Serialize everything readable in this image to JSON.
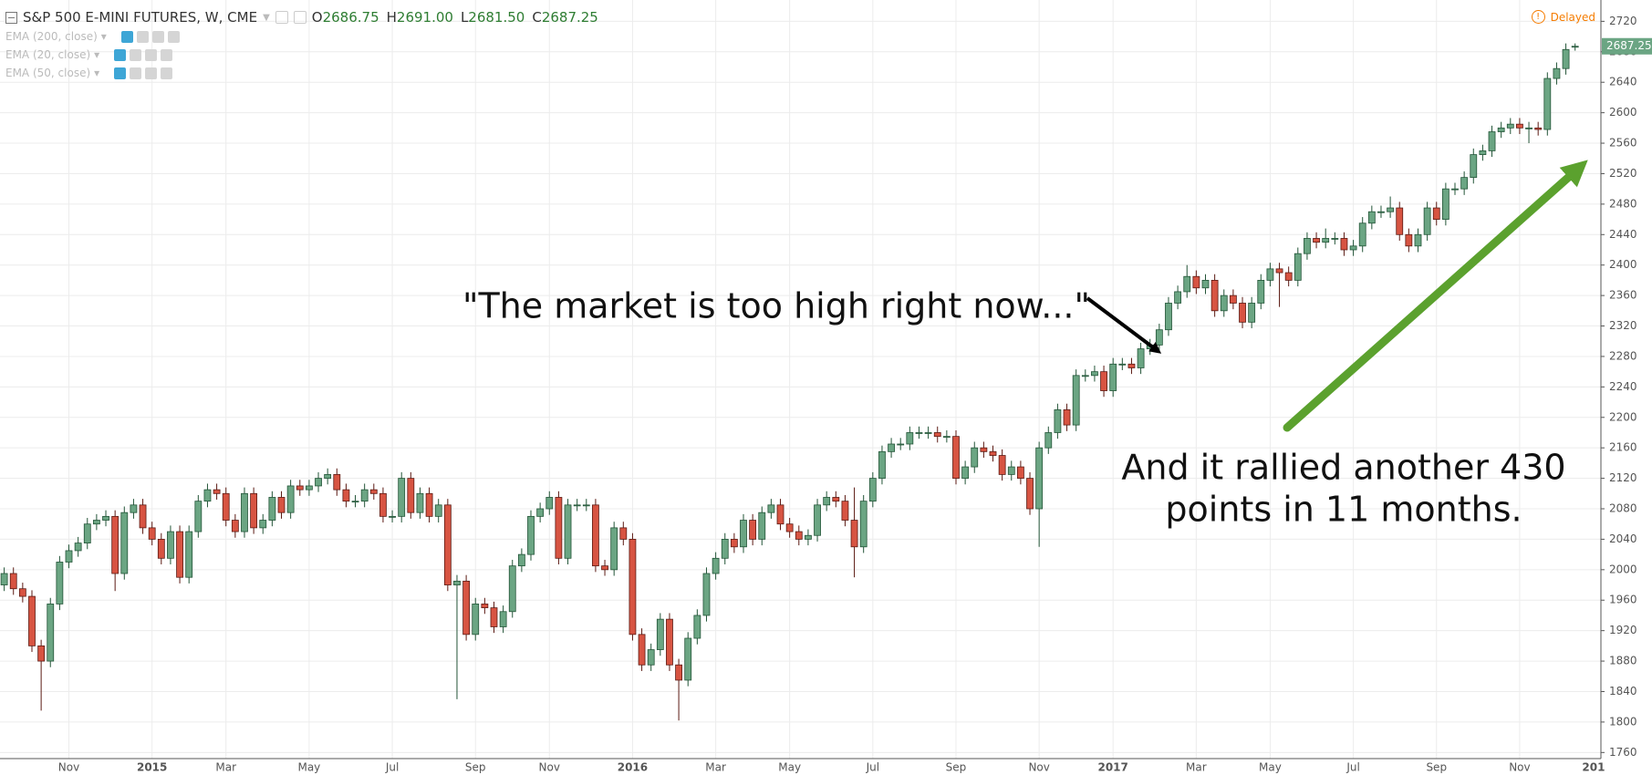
{
  "header": {
    "symbol": "S&P 500 E-MINI FUTURES, W, CME",
    "quote": [
      {
        "letter": "O",
        "value": 2686.75,
        "label": "2686.75"
      },
      {
        "letter": "H",
        "value": 2691,
        "label": "2691.00"
      },
      {
        "letter": "L",
        "value": 2681.5,
        "label": "2681.50"
      },
      {
        "letter": "C",
        "value": 2687.25,
        "label": "2687.25"
      }
    ],
    "indicators": [
      "EMA (200, close)",
      "EMA (20, close)",
      "EMA (50, close)"
    ],
    "status": "Delayed"
  },
  "chart_data": {
    "type": "candlestick",
    "up_color": "#6ba583",
    "down_color": "#d75442",
    "grid": true,
    "annotations": [
      {
        "text": [
          "\"The market is too high right now...\""
        ]
      },
      {
        "text": [
          "And it rallied another 430",
          "points in 11 months."
        ]
      }
    ],
    "ylim": [
      1752,
      2748
    ],
    "yticks": [
      1760,
      1800,
      1840,
      1880,
      1920,
      1960,
      2000,
      2040,
      2080,
      2120,
      2160,
      2200,
      2240,
      2280,
      2320,
      2360,
      2400,
      2440,
      2480,
      2520,
      2560,
      2600,
      2640,
      2680,
      2720
    ],
    "x_axis_end_label": "201",
    "categories": [
      null,
      null,
      null,
      null,
      null,
      null,
      null,
      "Nov",
      null,
      null,
      null,
      null,
      null,
      null,
      null,
      null,
      "2015",
      null,
      null,
      null,
      null,
      null,
      null,
      null,
      "Mar",
      null,
      null,
      null,
      null,
      null,
      null,
      null,
      null,
      "May",
      null,
      null,
      null,
      null,
      null,
      null,
      null,
      null,
      "Jul",
      null,
      null,
      null,
      null,
      null,
      null,
      null,
      null,
      "Sep",
      null,
      null,
      null,
      null,
      null,
      null,
      null,
      "Nov",
      null,
      null,
      null,
      null,
      null,
      null,
      null,
      null,
      "2016",
      null,
      null,
      null,
      null,
      null,
      null,
      null,
      null,
      "Mar",
      null,
      null,
      null,
      null,
      null,
      null,
      null,
      "May",
      null,
      null,
      null,
      null,
      null,
      null,
      null,
      null,
      "Jul",
      null,
      null,
      null,
      null,
      null,
      null,
      null,
      null,
      "Sep",
      null,
      null,
      null,
      null,
      null,
      null,
      null,
      null,
      "Nov",
      null,
      null,
      null,
      null,
      null,
      null,
      null,
      "2017",
      null,
      null,
      null,
      null,
      null,
      null,
      null,
      null,
      "Mar",
      null,
      null,
      null,
      null,
      null,
      null,
      null,
      "May",
      null,
      null,
      null,
      null,
      null,
      null,
      null,
      null,
      "Jul",
      null,
      null,
      null,
      null,
      null,
      null,
      null,
      null,
      "Sep",
      null,
      null,
      null,
      null,
      null,
      null,
      null,
      null,
      "Nov",
      null,
      null,
      null,
      null,
      null,
      null
    ],
    "candles": [
      [
        1980,
        2003,
        1972,
        1995
      ],
      [
        1995,
        2003,
        1967,
        1975
      ],
      [
        1975,
        1983,
        1957,
        1965
      ],
      [
        1965,
        1973,
        1892,
        1900
      ],
      [
        1900,
        1908,
        1815,
        1880
      ],
      [
        1880,
        1963,
        1872,
        1955
      ],
      [
        1955,
        2018,
        1947,
        2010
      ],
      [
        2010,
        2033,
        2002,
        2025
      ],
      [
        2025,
        2043,
        2017,
        2035
      ],
      [
        2035,
        2068,
        2027,
        2060
      ],
      [
        2060,
        2073,
        2052,
        2065
      ],
      [
        2065,
        2078,
        2057,
        2070
      ],
      [
        2070,
        2078,
        1972,
        1995
      ],
      [
        1995,
        2083,
        1987,
        2075
      ],
      [
        2075,
        2093,
        2067,
        2085
      ],
      [
        2085,
        2093,
        2047,
        2055
      ],
      [
        2055,
        2063,
        2032,
        2040
      ],
      [
        2040,
        2048,
        2007,
        2015
      ],
      [
        2015,
        2058,
        2007,
        2050
      ],
      [
        2050,
        2058,
        1982,
        1990
      ],
      [
        1990,
        2058,
        1982,
        2050
      ],
      [
        2050,
        2098,
        2042,
        2090
      ],
      [
        2090,
        2113,
        2082,
        2105
      ],
      [
        2105,
        2113,
        2092,
        2100
      ],
      [
        2100,
        2108,
        2057,
        2065
      ],
      [
        2065,
        2073,
        2042,
        2050
      ],
      [
        2050,
        2108,
        2042,
        2100
      ],
      [
        2100,
        2108,
        2047,
        2055
      ],
      [
        2055,
        2073,
        2047,
        2065
      ],
      [
        2065,
        2103,
        2057,
        2095
      ],
      [
        2095,
        2103,
        2067,
        2075
      ],
      [
        2075,
        2118,
        2067,
        2110
      ],
      [
        2110,
        2118,
        2097,
        2105
      ],
      [
        2105,
        2118,
        2097,
        2110
      ],
      [
        2110,
        2128,
        2102,
        2120
      ],
      [
        2120,
        2133,
        2112,
        2125
      ],
      [
        2125,
        2133,
        2097,
        2105
      ],
      [
        2105,
        2113,
        2082,
        2090
      ],
      [
        2090,
        2098,
        2082,
        2090
      ],
      [
        2090,
        2113,
        2082,
        2105
      ],
      [
        2105,
        2113,
        2092,
        2100
      ],
      [
        2100,
        2108,
        2062,
        2070
      ],
      [
        2070,
        2078,
        2062,
        2070
      ],
      [
        2070,
        2128,
        2062,
        2120
      ],
      [
        2120,
        2128,
        2067,
        2075
      ],
      [
        2075,
        2108,
        2067,
        2100
      ],
      [
        2100,
        2108,
        2062,
        2070
      ],
      [
        2070,
        2093,
        2062,
        2085
      ],
      [
        2085,
        2093,
        1972,
        1980
      ],
      [
        1980,
        1993,
        1830,
        1985
      ],
      [
        1985,
        1993,
        1907,
        1915
      ],
      [
        1915,
        1963,
        1907,
        1955
      ],
      [
        1955,
        1963,
        1942,
        1950
      ],
      [
        1950,
        1958,
        1917,
        1925
      ],
      [
        1925,
        1953,
        1917,
        1945
      ],
      [
        1945,
        2013,
        1937,
        2005
      ],
      [
        2005,
        2028,
        1997,
        2020
      ],
      [
        2020,
        2078,
        2012,
        2070
      ],
      [
        2070,
        2088,
        2062,
        2080
      ],
      [
        2080,
        2103,
        2072,
        2095
      ],
      [
        2095,
        2103,
        2007,
        2015
      ],
      [
        2015,
        2093,
        2007,
        2085
      ],
      [
        2085,
        2093,
        2077,
        2085
      ],
      [
        2085,
        2093,
        2077,
        2085
      ],
      [
        2085,
        2093,
        1997,
        2005
      ],
      [
        2005,
        2013,
        1992,
        2000
      ],
      [
        2000,
        2063,
        1992,
        2055
      ],
      [
        2055,
        2063,
        2032,
        2040
      ],
      [
        2040,
        2048,
        1907,
        1915
      ],
      [
        1915,
        1923,
        1867,
        1875
      ],
      [
        1875,
        1903,
        1867,
        1895
      ],
      [
        1895,
        1943,
        1887,
        1935
      ],
      [
        1935,
        1943,
        1867,
        1875
      ],
      [
        1875,
        1883,
        1802,
        1855
      ],
      [
        1855,
        1918,
        1847,
        1910
      ],
      [
        1910,
        1948,
        1902,
        1940
      ],
      [
        1940,
        2003,
        1932,
        1995
      ],
      [
        1995,
        2023,
        1987,
        2015
      ],
      [
        2015,
        2048,
        2007,
        2040
      ],
      [
        2040,
        2048,
        2022,
        2030
      ],
      [
        2030,
        2073,
        2022,
        2065
      ],
      [
        2065,
        2073,
        2032,
        2040
      ],
      [
        2040,
        2083,
        2032,
        2075
      ],
      [
        2075,
        2093,
        2067,
        2085
      ],
      [
        2085,
        2093,
        2052,
        2060
      ],
      [
        2060,
        2068,
        2042,
        2050
      ],
      [
        2050,
        2058,
        2032,
        2040
      ],
      [
        2040,
        2053,
        2032,
        2045
      ],
      [
        2045,
        2093,
        2037,
        2085
      ],
      [
        2085,
        2103,
        2077,
        2095
      ],
      [
        2095,
        2103,
        2082,
        2090
      ],
      [
        2090,
        2098,
        2057,
        2065
      ],
      [
        2065,
        2108,
        1990,
        2030
      ],
      [
        2030,
        2098,
        2022,
        2090
      ],
      [
        2090,
        2128,
        2082,
        2120
      ],
      [
        2120,
        2163,
        2112,
        2155
      ],
      [
        2155,
        2173,
        2147,
        2165
      ],
      [
        2165,
        2173,
        2157,
        2165
      ],
      [
        2165,
        2188,
        2157,
        2180
      ],
      [
        2180,
        2188,
        2172,
        2180
      ],
      [
        2180,
        2188,
        2172,
        2180
      ],
      [
        2180,
        2188,
        2167,
        2175
      ],
      [
        2175,
        2183,
        2167,
        2175
      ],
      [
        2175,
        2183,
        2112,
        2120
      ],
      [
        2120,
        2143,
        2112,
        2135
      ],
      [
        2135,
        2168,
        2127,
        2160
      ],
      [
        2160,
        2168,
        2147,
        2155
      ],
      [
        2155,
        2163,
        2142,
        2150
      ],
      [
        2150,
        2158,
        2117,
        2125
      ],
      [
        2125,
        2143,
        2117,
        2135
      ],
      [
        2135,
        2143,
        2112,
        2120
      ],
      [
        2120,
        2128,
        2072,
        2080
      ],
      [
        2080,
        2168,
        2030,
        2160
      ],
      [
        2160,
        2188,
        2152,
        2180
      ],
      [
        2180,
        2218,
        2172,
        2210
      ],
      [
        2210,
        2218,
        2182,
        2190
      ],
      [
        2190,
        2263,
        2182,
        2255
      ],
      [
        2255,
        2263,
        2247,
        2255
      ],
      [
        2255,
        2268,
        2247,
        2260
      ],
      [
        2260,
        2268,
        2227,
        2235
      ],
      [
        2235,
        2278,
        2227,
        2270
      ],
      [
        2270,
        2278,
        2262,
        2270
      ],
      [
        2270,
        2278,
        2257,
        2265
      ],
      [
        2265,
        2298,
        2257,
        2290
      ],
      [
        2290,
        2303,
        2282,
        2295
      ],
      [
        2295,
        2323,
        2287,
        2315
      ],
      [
        2315,
        2358,
        2307,
        2350
      ],
      [
        2350,
        2373,
        2342,
        2365
      ],
      [
        2365,
        2400,
        2357,
        2385
      ],
      [
        2385,
        2393,
        2362,
        2370
      ],
      [
        2370,
        2388,
        2362,
        2380
      ],
      [
        2380,
        2388,
        2332,
        2340
      ],
      [
        2340,
        2368,
        2332,
        2360
      ],
      [
        2360,
        2368,
        2342,
        2350
      ],
      [
        2350,
        2358,
        2317,
        2325
      ],
      [
        2325,
        2358,
        2317,
        2350
      ],
      [
        2350,
        2388,
        2342,
        2380
      ],
      [
        2380,
        2403,
        2372,
        2395
      ],
      [
        2395,
        2403,
        2345,
        2390
      ],
      [
        2390,
        2398,
        2372,
        2380
      ],
      [
        2380,
        2423,
        2372,
        2415
      ],
      [
        2415,
        2443,
        2407,
        2435
      ],
      [
        2435,
        2443,
        2422,
        2430
      ],
      [
        2430,
        2448,
        2422,
        2435
      ],
      [
        2435,
        2443,
        2427,
        2435
      ],
      [
        2435,
        2443,
        2412,
        2420
      ],
      [
        2420,
        2433,
        2412,
        2425
      ],
      [
        2425,
        2463,
        2417,
        2455
      ],
      [
        2455,
        2478,
        2447,
        2470
      ],
      [
        2470,
        2478,
        2462,
        2470
      ],
      [
        2470,
        2490,
        2462,
        2475
      ],
      [
        2475,
        2483,
        2432,
        2440
      ],
      [
        2440,
        2448,
        2417,
        2425
      ],
      [
        2425,
        2448,
        2417,
        2440
      ],
      [
        2440,
        2483,
        2432,
        2475
      ],
      [
        2475,
        2483,
        2452,
        2460
      ],
      [
        2460,
        2508,
        2452,
        2500
      ],
      [
        2500,
        2508,
        2492,
        2500
      ],
      [
        2500,
        2523,
        2492,
        2515
      ],
      [
        2515,
        2553,
        2507,
        2545
      ],
      [
        2545,
        2558,
        2537,
        2550
      ],
      [
        2550,
        2583,
        2542,
        2575
      ],
      [
        2575,
        2588,
        2567,
        2580
      ],
      [
        2580,
        2593,
        2572,
        2585
      ],
      [
        2585,
        2593,
        2572,
        2580
      ],
      [
        2580,
        2588,
        2560,
        2580
      ],
      [
        2580,
        2588,
        2570,
        2578
      ],
      [
        2578,
        2653,
        2570,
        2645
      ],
      [
        2645,
        2666,
        2637,
        2658
      ],
      [
        2658,
        2691,
        2650,
        2683
      ],
      [
        2686.75,
        2691,
        2681.5,
        2687.25
      ]
    ]
  }
}
